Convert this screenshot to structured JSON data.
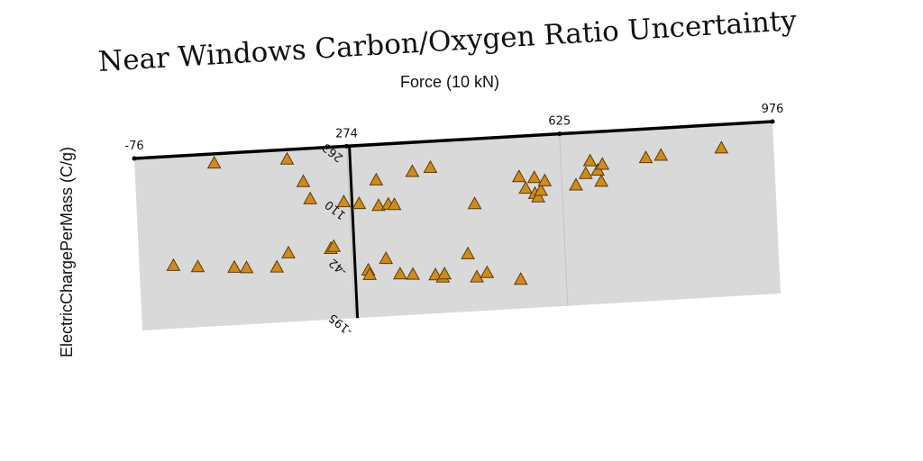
{
  "chart_data": {
    "type": "scatter",
    "title": "Near Windows Carbon/Oxygen Ratio Uncertainty",
    "xlabel": "Force (10 kN)",
    "ylabel": "ElectricChargePerMass (C/g)",
    "xlim": [
      -76,
      976
    ],
    "ylim": [
      -195,
      263
    ],
    "x_ticks": [
      -76,
      274,
      625,
      976
    ],
    "y_ticks": [
      -195,
      -42,
      110,
      263
    ],
    "grid": true,
    "marker": "triangle",
    "colors": {
      "marker_fill": "#d08a1e",
      "marker_edge": "#5a3a08",
      "plot_background": "#d9d9d9",
      "axis": "#000000"
    },
    "points": [
      {
        "x": -20,
        "y": -28
      },
      {
        "x": 55,
        "y": 238
      },
      {
        "x": 175,
        "y": 237
      },
      {
        "x": 200,
        "y": 175
      },
      {
        "x": 210,
        "y": 128
      },
      {
        "x": 265,
        "y": 115
      },
      {
        "x": 290,
        "y": 108
      },
      {
        "x": 20,
        "y": -35
      },
      {
        "x": 80,
        "y": -42
      },
      {
        "x": 100,
        "y": -45
      },
      {
        "x": 150,
        "y": -48
      },
      {
        "x": 170,
        "y": -12
      },
      {
        "x": 240,
        "y": -7
      },
      {
        "x": 245,
        "y": -2
      },
      {
        "x": 320,
        "y": 168
      },
      {
        "x": 322,
        "y": 100
      },
      {
        "x": 338,
        "y": 102
      },
      {
        "x": 348,
        "y": 100
      },
      {
        "x": 380,
        "y": 185
      },
      {
        "x": 410,
        "y": 193
      },
      {
        "x": 330,
        "y": -42
      },
      {
        "x": 300,
        "y": -70
      },
      {
        "x": 302,
        "y": -82
      },
      {
        "x": 352,
        "y": -85
      },
      {
        "x": 373,
        "y": -88
      },
      {
        "x": 410,
        "y": -93
      },
      {
        "x": 422,
        "y": -100
      },
      {
        "x": 425,
        "y": -92
      },
      {
        "x": 465,
        "y": -42
      },
      {
        "x": 478,
        "y": -105
      },
      {
        "x": 480,
        "y": 90
      },
      {
        "x": 495,
        "y": -95
      },
      {
        "x": 550,
        "y": -118
      },
      {
        "x": 555,
        "y": 155
      },
      {
        "x": 565,
        "y": 123
      },
      {
        "x": 580,
        "y": 150
      },
      {
        "x": 580,
        "y": 108
      },
      {
        "x": 585,
        "y": 98
      },
      {
        "x": 590,
        "y": 115
      },
      {
        "x": 597,
        "y": 140
      },
      {
        "x": 648,
        "y": 124
      },
      {
        "x": 665,
        "y": 153
      },
      {
        "x": 673,
        "y": 186
      },
      {
        "x": 685,
        "y": 160
      },
      {
        "x": 690,
        "y": 130
      },
      {
        "x": 693,
        "y": 175
      },
      {
        "x": 765,
        "y": 186
      },
      {
        "x": 790,
        "y": 190
      },
      {
        "x": 890,
        "y": 200
      }
    ]
  }
}
